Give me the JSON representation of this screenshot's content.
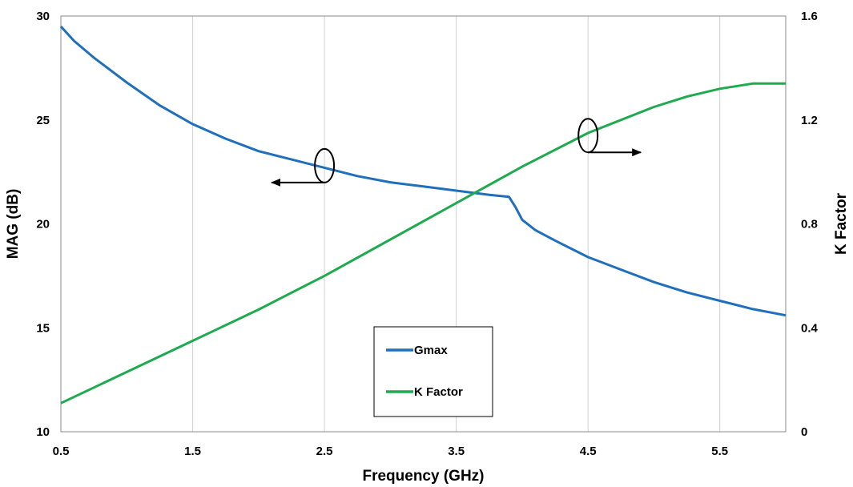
{
  "chart_data": {
    "type": "line",
    "xlabel": "Frequency (GHz)",
    "ylabel": "MAG (dB)",
    "y2label": "K Factor",
    "xlim": [
      0.5,
      6.0
    ],
    "ylim": [
      10,
      30
    ],
    "y2lim": [
      0,
      1.6
    ],
    "xticks": [
      "0.5",
      "1.5",
      "2.5",
      "3.5",
      "4.5",
      "5.5"
    ],
    "yticks": [
      "10",
      "15",
      "20",
      "25",
      "30"
    ],
    "y2ticks": [
      "0",
      "0.4",
      "0.8",
      "1.2",
      "1.6"
    ],
    "grid": "vertical",
    "legend_position": "bottom-center",
    "series": [
      {
        "name": "Gmax",
        "axis": "left",
        "color": "#1f6fbf",
        "x": [
          0.5,
          0.6,
          0.75,
          1.0,
          1.25,
          1.5,
          1.75,
          2.0,
          2.25,
          2.5,
          2.75,
          3.0,
          3.25,
          3.5,
          3.75,
          3.9,
          3.95,
          4.0,
          4.1,
          4.25,
          4.5,
          4.75,
          5.0,
          5.25,
          5.5,
          5.75,
          6.0
        ],
        "y": [
          29.5,
          28.8,
          28.0,
          26.8,
          25.7,
          24.8,
          24.1,
          23.5,
          23.1,
          22.7,
          22.3,
          22.0,
          21.8,
          21.6,
          21.4,
          21.3,
          20.8,
          20.2,
          19.7,
          19.2,
          18.4,
          17.8,
          17.2,
          16.7,
          16.3,
          15.9,
          15.6
        ]
      },
      {
        "name": "K Factor",
        "axis": "right",
        "color": "#1eaa4e",
        "x": [
          0.5,
          1.0,
          1.5,
          2.0,
          2.5,
          3.0,
          3.5,
          4.0,
          4.5,
          5.0,
          5.25,
          5.5,
          5.75,
          6.0
        ],
        "y": [
          0.11,
          0.23,
          0.35,
          0.47,
          0.6,
          0.74,
          0.88,
          1.02,
          1.15,
          1.25,
          1.29,
          1.32,
          1.34,
          1.34
        ]
      }
    ],
    "annotations": [
      {
        "type": "ellipse-arrow",
        "series": "Gmax",
        "x": 2.5,
        "y": 22.8,
        "direction": "left"
      },
      {
        "type": "ellipse-arrow",
        "series": "K Factor",
        "x": 4.5,
        "y": 1.14,
        "direction": "right"
      }
    ]
  }
}
